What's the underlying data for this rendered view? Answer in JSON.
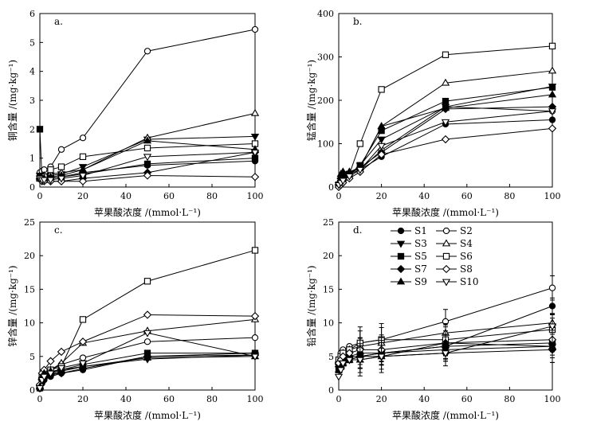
{
  "chart_data": [
    {
      "type": "line",
      "panel_label": "a.",
      "ylabel": "铜含量 /(mg·kg⁻¹)",
      "xlabel": "苹果酸浓度 /(mmol·L⁻¹)",
      "ylim": [
        0,
        6
      ],
      "yticks": [
        0,
        1,
        2,
        3,
        4,
        5,
        6
      ],
      "xlim": [
        0,
        100
      ],
      "xticks": [
        0,
        20,
        40,
        60,
        80,
        100
      ],
      "x": [
        0,
        1,
        2,
        5,
        10,
        20,
        50,
        100
      ],
      "series": [
        {
          "name": "S1",
          "values": [
            0.4,
            0.3,
            0.3,
            0.3,
            0.35,
            0.5,
            0.75,
            0.9
          ]
        },
        {
          "name": "S2",
          "values": [
            0.5,
            0.55,
            0.6,
            0.7,
            1.3,
            1.7,
            4.7,
            5.45
          ]
        },
        {
          "name": "S3",
          "values": [
            0.4,
            0.3,
            0.35,
            0.4,
            0.45,
            0.7,
            1.65,
            1.75
          ]
        },
        {
          "name": "S4",
          "values": [
            0.3,
            0.35,
            0.4,
            0.45,
            0.5,
            0.6,
            1.7,
            2.55
          ]
        },
        {
          "name": "S5",
          "values": [
            2.0,
            0.3,
            0.25,
            0.3,
            0.35,
            0.45,
            0.8,
            1.0
          ]
        },
        {
          "name": "S6",
          "values": [
            0.3,
            0.3,
            0.35,
            0.6,
            0.7,
            1.05,
            1.35,
            1.5
          ]
        },
        {
          "name": "S7",
          "values": [
            0.3,
            0.3,
            0.25,
            0.2,
            0.2,
            0.3,
            0.5,
            1.2
          ]
        },
        {
          "name": "S8",
          "values": [
            0.3,
            0.2,
            0.2,
            0.2,
            0.2,
            0.2,
            0.4,
            0.35
          ]
        },
        {
          "name": "S9",
          "values": [
            0.35,
            0.3,
            0.3,
            0.35,
            0.4,
            0.6,
            1.6,
            1.3
          ]
        },
        {
          "name": "S10",
          "values": [
            0.3,
            0.25,
            0.25,
            0.25,
            0.3,
            0.4,
            1.05,
            1.2
          ]
        }
      ]
    },
    {
      "type": "line",
      "panel_label": "b.",
      "ylabel": "锰含量 /(mg·kg⁻¹)",
      "xlabel": "苹果酸浓度 /(mmol·L⁻¹)",
      "ylim": [
        0,
        400
      ],
      "yticks": [
        0,
        100,
        200,
        300,
        400
      ],
      "xlim": [
        0,
        100
      ],
      "xticks": [
        0,
        20,
        40,
        60,
        80,
        100
      ],
      "x": [
        0,
        1,
        2,
        5,
        10,
        20,
        50,
        100
      ],
      "series": [
        {
          "name": "S1",
          "values": [
            5,
            10,
            15,
            25,
            40,
            70,
            145,
            155
          ]
        },
        {
          "name": "S2",
          "values": [
            5,
            10,
            20,
            30,
            40,
            85,
            185,
            175
          ]
        },
        {
          "name": "S3",
          "values": [
            5,
            15,
            20,
            30,
            50,
            110,
            185,
            232
          ]
        },
        {
          "name": "S4",
          "values": [
            10,
            25,
            35,
            35,
            45,
            140,
            240,
            268
          ]
        },
        {
          "name": "S5",
          "values": [
            5,
            15,
            20,
            30,
            50,
            130,
            198,
            230
          ]
        },
        {
          "name": "S6",
          "values": [
            5,
            15,
            25,
            30,
            100,
            225,
            305,
            325
          ]
        },
        {
          "name": "S7",
          "values": [
            5,
            20,
            25,
            30,
            45,
            80,
            180,
            185
          ]
        },
        {
          "name": "S8",
          "values": [
            0,
            5,
            10,
            20,
            35,
            75,
            110,
            135
          ]
        },
        {
          "name": "S9",
          "values": [
            10,
            30,
            35,
            35,
            45,
            140,
            182,
            213
          ]
        },
        {
          "name": "S10",
          "values": [
            5,
            10,
            15,
            25,
            40,
            95,
            150,
            175
          ]
        }
      ]
    },
    {
      "type": "line",
      "panel_label": "c.",
      "ylabel": "锌含量 /(mg·kg⁻¹)",
      "xlabel": "苹果酸浓度 /(mmol·L⁻¹)",
      "ylim": [
        0,
        25
      ],
      "yticks": [
        0,
        5,
        10,
        15,
        20,
        25
      ],
      "xlim": [
        0,
        100
      ],
      "xticks": [
        0,
        20,
        40,
        60,
        80,
        100
      ],
      "x": [
        0,
        1,
        2,
        5,
        10,
        20,
        50,
        100
      ],
      "series": [
        {
          "name": "S1",
          "values": [
            0.2,
            1.0,
            1.5,
            2.0,
            2.5,
            3.0,
            5.0,
            5.5
          ]
        },
        {
          "name": "S2",
          "values": [
            0.3,
            1.5,
            2.0,
            3.0,
            3.8,
            4.8,
            7.2,
            7.8
          ]
        },
        {
          "name": "S3",
          "values": [
            0.3,
            1.2,
            1.8,
            2.3,
            2.8,
            3.5,
            4.6,
            5.2
          ]
        },
        {
          "name": "S4",
          "values": [
            0.5,
            2.0,
            2.5,
            3.0,
            4.0,
            7.0,
            8.8,
            10.5
          ]
        },
        {
          "name": "S5",
          "values": [
            0.3,
            1.5,
            2.0,
            2.5,
            3.0,
            3.8,
            5.5,
            5.5
          ]
        },
        {
          "name": "S6",
          "values": [
            0.5,
            2.0,
            2.5,
            3.0,
            3.5,
            10.5,
            16.2,
            20.8
          ]
        },
        {
          "name": "S7",
          "values": [
            0.3,
            1.5,
            2.0,
            2.3,
            2.5,
            3.2,
            5.0,
            5.2
          ]
        },
        {
          "name": "S8",
          "values": [
            0.8,
            2.5,
            3.0,
            4.3,
            5.7,
            7.2,
            11.2,
            11.0
          ]
        },
        {
          "name": "S9",
          "values": [
            0.5,
            2.0,
            2.5,
            2.8,
            3.0,
            3.5,
            4.8,
            5.0
          ]
        },
        {
          "name": "S10",
          "values": [
            0.3,
            1.5,
            2.0,
            2.5,
            3.3,
            4.0,
            8.5,
            5.0
          ]
        }
      ]
    },
    {
      "type": "line",
      "panel_label": "d.",
      "ylabel": "铅含量 /(mg·kg⁻¹)",
      "xlabel": "苹果酸浓度 /(mmol·L⁻¹)",
      "ylim": [
        0,
        25
      ],
      "yticks": [
        0,
        5,
        10,
        15,
        20,
        25
      ],
      "xlim": [
        0,
        100
      ],
      "xticks": [
        0,
        20,
        40,
        60,
        80,
        100
      ],
      "x": [
        0,
        1,
        2,
        5,
        10,
        20,
        50,
        100
      ],
      "error_bars": true,
      "series": [
        {
          "name": "S1",
          "values": [
            3.5,
            4.0,
            4.5,
            5.0,
            5.5,
            5.5,
            6.5,
            12.5
          ]
        },
        {
          "name": "S2",
          "values": [
            4.0,
            5.5,
            6.0,
            6.5,
            7.0,
            7.5,
            10.2,
            15.2
          ]
        },
        {
          "name": "S3",
          "values": [
            3.5,
            4.0,
            4.5,
            4.5,
            5.0,
            5.5,
            6.0,
            6.5
          ]
        },
        {
          "name": "S4",
          "values": [
            4.5,
            5.0,
            5.5,
            6.0,
            6.5,
            7.0,
            8.5,
            10.0
          ]
        },
        {
          "name": "S5",
          "values": [
            3.0,
            3.5,
            4.0,
            4.5,
            5.0,
            5.5,
            6.5,
            7.0
          ]
        },
        {
          "name": "S6",
          "values": [
            4.5,
            5.0,
            5.5,
            6.0,
            7.0,
            7.5,
            7.5,
            9.0
          ]
        },
        {
          "name": "S7",
          "values": [
            3.5,
            4.0,
            4.5,
            5.0,
            5.0,
            5.0,
            5.5,
            6.0
          ]
        },
        {
          "name": "S8",
          "values": [
            4.0,
            4.5,
            5.0,
            5.5,
            6.0,
            6.0,
            7.0,
            7.5
          ]
        },
        {
          "name": "S9",
          "values": [
            3.0,
            3.5,
            4.0,
            4.5,
            4.5,
            5.0,
            7.0,
            6.5
          ]
        },
        {
          "name": "S10",
          "values": [
            2.0,
            3.0,
            4.0,
            4.5,
            4.5,
            5.0,
            5.5,
            9.5
          ]
        }
      ]
    }
  ],
  "legend": {
    "entries": [
      "S1",
      "S2",
      "S3",
      "S4",
      "S5",
      "S6",
      "S7",
      "S8",
      "S9",
      "S10"
    ]
  }
}
